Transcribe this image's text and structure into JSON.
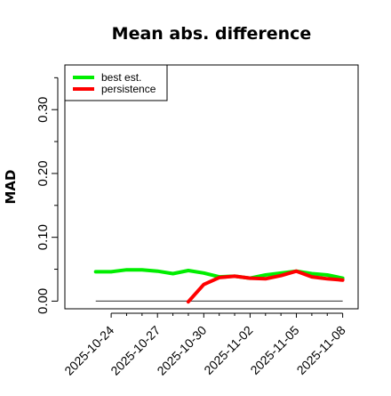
{
  "chart_data": {
    "type": "line",
    "title": "Mean abs. difference",
    "xlabel": "",
    "ylabel": "MAD",
    "xlim": [
      "2025-10-21",
      "2025-11-09"
    ],
    "ylim": [
      -0.012,
      0.37
    ],
    "x_ticks": [
      "2025-10-24",
      "2025-10-27",
      "2025-10-30",
      "2025-11-02",
      "2025-11-05",
      "2025-11-08"
    ],
    "y_ticks_major": [
      {
        "value": 0.0,
        "label": "0.00"
      },
      {
        "value": 0.1,
        "label": "0.10"
      },
      {
        "value": 0.2,
        "label": "0.20"
      },
      {
        "value": 0.3,
        "label": "0.30"
      }
    ],
    "y_ticks_minor": [
      0.05,
      0.15,
      0.25,
      0.35
    ],
    "grid": false,
    "legend_position": "top-left",
    "reference_line": {
      "y": 0.0,
      "x_start": "2025-10-23",
      "x_end": "2025-11-08",
      "color": "#555555"
    },
    "series": [
      {
        "name": "best est.",
        "color": "#00ee00",
        "x": [
          "2025-10-23",
          "2025-10-24",
          "2025-10-25",
          "2025-10-26",
          "2025-10-27",
          "2025-10-28",
          "2025-10-29",
          "2025-10-30",
          "2025-10-31",
          "2025-11-01",
          "2025-11-02",
          "2025-11-03",
          "2025-11-04",
          "2025-11-05",
          "2025-11-06",
          "2025-11-07",
          "2025-11-08"
        ],
        "values": [
          0.046,
          0.046,
          0.049,
          0.049,
          0.047,
          0.043,
          0.048,
          0.044,
          0.038,
          0.039,
          0.036,
          0.041,
          0.044,
          0.047,
          0.043,
          0.041,
          0.036
        ]
      },
      {
        "name": "persistence",
        "color": "#ff0000",
        "x": [
          "2025-10-29",
          "2025-10-30",
          "2025-10-31",
          "2025-11-01",
          "2025-11-02",
          "2025-11-03",
          "2025-11-04",
          "2025-11-05",
          "2025-11-06",
          "2025-11-07",
          "2025-11-08"
        ],
        "values": [
          -0.001,
          0.026,
          0.037,
          0.039,
          0.036,
          0.035,
          0.04,
          0.047,
          0.038,
          0.035,
          0.033
        ]
      }
    ]
  }
}
